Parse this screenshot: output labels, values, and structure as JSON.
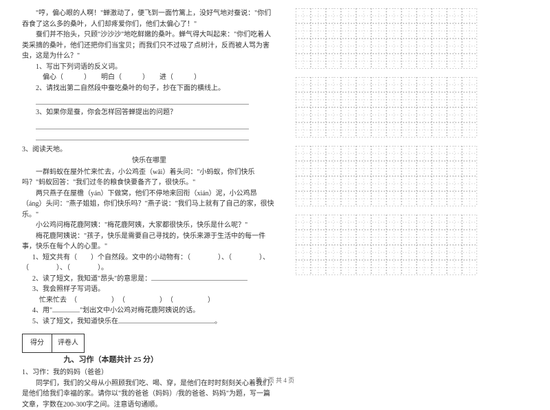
{
  "passage1": {
    "p1": "\"哼，偏心眼的人啊！\"蝉激动了，便飞到一面竹篱上，没好气地对蚕说：\"你们吞食了这么多的桑叶，人们却疼爱你们，他们太偏心了！\"",
    "p2": "蚕们并不抬头，只顾\"沙沙沙\"地吃鲜嫩的桑叶。蝉气得大叫起来：\"你们吃着人类采摘的桑叶，他们还把你们当宝贝；而我们只不过吸了点树汁，反而被人骂为害虫，这是为什么？\"",
    "q1": "1、写出下列词语的反义词。",
    "q1_line": "偏心（　　　）　　明白（　　　）　　进（　　　）",
    "q2": "2、请找出第二自然段中蚕吃桑叶的句子，抄在下面的横线上。",
    "q3": "3、如果你是蚕，你会怎样回答蝉提出的问题？"
  },
  "reading_title": "3、阅读天地。",
  "passage2": {
    "title": "快乐在哪里",
    "p1": "一群蚂蚁在屋外忙来忙去，小公鸡歪（wāi）着头问：\"小蚂蚁，你们快乐吗？\"蚂蚁回答：\"我们过冬的粮食快要备齐了，很快乐。\"",
    "p2": "两只燕子在屋檐（yán）下做窝，他们不停地来回衔（xián）泥，小公鸡昂（áng）头问：\"燕子姐姐，你们快乐吗？\"燕子说：\"我们马上就有了自己的家，很快乐。\"",
    "p3": "小公鸡问梅花鹿阿姨：\"梅花鹿阿姨，大家都很快乐，快乐是什么呢？\"",
    "p4": "梅花鹿阿姨说：\"孩子，快乐是需要自己寻找的，快乐来源于生活中的每一件事，快乐在每个人的心里。\"",
    "q1a": "1、短文共有（　　）个自然段。文中的小动物有：（　　　　）、（　　　　）、（　　　　）、（　　　　）。",
    "q2": "2、读了短文，我知道\"昂头\"的意思是：",
    "q3": "3、我会照样子写词语。",
    "q3_line": "忙来忙去　（　　　　　）　（　　　　　）　（　　　　　）",
    "q4": "4、用\"",
    "q4b": "\"划出文中小公鸡对梅花鹿阿姨说的话。",
    "q5": "5、读了短文，我知道快乐在"
  },
  "score": {
    "label1": "得分",
    "label2": "评卷人"
  },
  "section9": {
    "title": "九、习作（本题共计 25 分）",
    "q": "1、习作：我的妈妈（爸爸）",
    "body": "同学们，我们的父母从小照顾我们吃、喝、穿，是他们在时时刻刻关心着我们，是他们给我们幸福的家。请你以\"我的爸爸（妈妈）/我的爸爸、妈妈\"为题，写一篇文章，字数在200-300字之间。注意语句通顺。"
  },
  "gridStyle": {
    "rows": 4,
    "cols": 12,
    "cell": 22,
    "stroke": "#888888",
    "dash": "2 2",
    "solid_outer": false
  },
  "footer": "第 3 页 共 4 页"
}
